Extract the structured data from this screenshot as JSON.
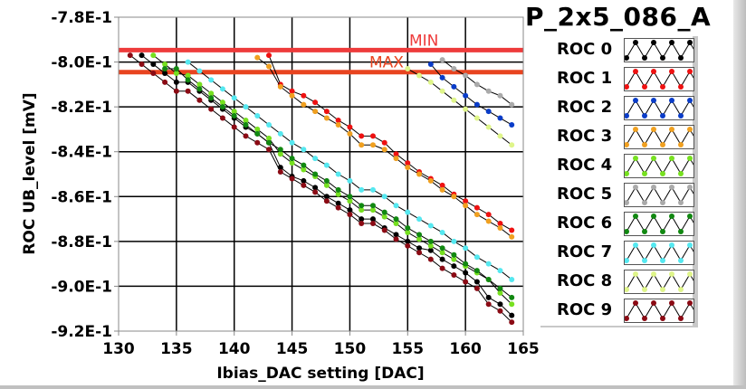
{
  "graph_title": "P_2x5_086_A",
  "chart_data": {
    "type": "line",
    "title": "P_2x5_086_A",
    "xlabel": "Ibias_DAC setting [DAC]",
    "ylabel": "ROC UB_level [mV]",
    "xlim": [
      130,
      165
    ],
    "ylim": [
      -0.92,
      -0.78
    ],
    "x_ticks": [
      130,
      135,
      140,
      145,
      150,
      155,
      160,
      165
    ],
    "x_tick_labels": [
      "130",
      "135",
      "140",
      "145",
      "150",
      "155",
      "160",
      "165"
    ],
    "y_ticks": [
      -0.78,
      -0.8,
      -0.82,
      -0.84,
      -0.86,
      -0.88,
      -0.9,
      -0.92
    ],
    "y_tick_labels": [
      "-7.8E-1",
      "-8.0E-1",
      "-8.2E-1",
      "-8.4E-1",
      "-8.6E-1",
      "-8.8E-1",
      "-9.0E-1",
      "-9.2E-1"
    ],
    "grid": true,
    "limits": [
      {
        "name": "MIN",
        "value": -0.7947,
        "color": "#ee3b3b"
      },
      {
        "name": "MAX",
        "value": -0.8045,
        "color": "#e84420"
      }
    ],
    "legend_position": "right",
    "series": [
      {
        "name": "ROC 0",
        "color": "#000000",
        "x": [
          132,
          133,
          134,
          135,
          136,
          137,
          138,
          139,
          140,
          141,
          142,
          143,
          144,
          145,
          146,
          147,
          148,
          149,
          150,
          151,
          152,
          153,
          154,
          155,
          156,
          157,
          158,
          159,
          160,
          161,
          162,
          163,
          164
        ],
        "y": [
          -0.797,
          -0.801,
          -0.805,
          -0.809,
          -0.809,
          -0.813,
          -0.817,
          -0.821,
          -0.825,
          -0.829,
          -0.832,
          -0.836,
          -0.847,
          -0.851,
          -0.853,
          -0.856,
          -0.86,
          -0.863,
          -0.866,
          -0.87,
          -0.87,
          -0.874,
          -0.877,
          -0.88,
          -0.883,
          -0.884,
          -0.888,
          -0.891,
          -0.894,
          -0.898,
          -0.905,
          -0.908,
          -0.913
        ]
      },
      {
        "name": "ROC 1",
        "color": "#ee1111",
        "x": [
          143,
          144,
          145,
          146,
          147,
          148,
          149,
          150,
          151,
          152,
          153,
          154,
          155,
          156,
          157,
          158,
          159,
          160,
          161,
          162,
          163,
          164
        ],
        "y": [
          -0.797,
          -0.81,
          -0.813,
          -0.815,
          -0.818,
          -0.822,
          -0.826,
          -0.829,
          -0.833,
          -0.833,
          -0.836,
          -0.841,
          -0.845,
          -0.849,
          -0.852,
          -0.855,
          -0.859,
          -0.862,
          -0.865,
          -0.868,
          -0.872,
          -0.875
        ]
      },
      {
        "name": "ROC 2",
        "color": "#0a3cc8",
        "x": [
          157,
          158,
          159,
          160,
          161,
          162,
          163,
          164
        ],
        "y": [
          -0.801,
          -0.807,
          -0.811,
          -0.815,
          -0.819,
          -0.822,
          -0.825,
          -0.828
        ]
      },
      {
        "name": "ROC 3",
        "color": "#f0a020",
        "x": [
          142,
          143,
          144,
          145,
          146,
          147,
          148,
          149,
          150,
          151,
          152,
          153,
          154,
          155,
          156,
          157,
          158,
          159,
          160,
          161,
          162,
          163,
          164
        ],
        "y": [
          -0.798,
          -0.802,
          -0.811,
          -0.815,
          -0.819,
          -0.822,
          -0.825,
          -0.828,
          -0.832,
          -0.837,
          -0.837,
          -0.839,
          -0.843,
          -0.847,
          -0.85,
          -0.853,
          -0.857,
          -0.86,
          -0.864,
          -0.868,
          -0.871,
          -0.874,
          -0.878
        ]
      },
      {
        "name": "ROC 4",
        "color": "#77e020",
        "x": [
          133,
          134,
          135,
          136,
          137,
          138,
          139,
          140,
          141,
          142,
          143,
          144,
          145,
          146,
          147,
          148,
          149,
          150,
          151,
          152,
          153,
          154,
          155,
          156,
          157,
          158,
          159,
          160,
          161,
          162,
          163,
          164
        ],
        "y": [
          -0.797,
          -0.801,
          -0.805,
          -0.806,
          -0.81,
          -0.814,
          -0.818,
          -0.822,
          -0.826,
          -0.83,
          -0.834,
          -0.841,
          -0.845,
          -0.848,
          -0.851,
          -0.855,
          -0.859,
          -0.862,
          -0.866,
          -0.866,
          -0.869,
          -0.872,
          -0.876,
          -0.879,
          -0.882,
          -0.885,
          -0.888,
          -0.891,
          -0.894,
          -0.897,
          -0.903,
          -0.908
        ]
      },
      {
        "name": "ROC 5",
        "color": "#aaaaaa",
        "x": [
          158,
          159,
          160,
          161,
          162,
          163,
          164
        ],
        "y": [
          -0.799,
          -0.803,
          -0.806,
          -0.81,
          -0.813,
          -0.815,
          -0.819
        ]
      },
      {
        "name": "ROC 6",
        "color": "#118811",
        "x": [
          134,
          135,
          136,
          137,
          138,
          139,
          140,
          141,
          142,
          143,
          144,
          145,
          146,
          147,
          148,
          149,
          150,
          151,
          152,
          153,
          154,
          155,
          156,
          157,
          158,
          159,
          160,
          161,
          162,
          163,
          164
        ],
        "y": [
          -0.803,
          -0.803,
          -0.808,
          -0.812,
          -0.816,
          -0.82,
          -0.824,
          -0.828,
          -0.832,
          -0.836,
          -0.839,
          -0.843,
          -0.846,
          -0.85,
          -0.853,
          -0.857,
          -0.86,
          -0.864,
          -0.864,
          -0.867,
          -0.87,
          -0.874,
          -0.877,
          -0.88,
          -0.883,
          -0.886,
          -0.89,
          -0.893,
          -0.897,
          -0.901,
          -0.905
        ]
      },
      {
        "name": "ROC 7",
        "color": "#55e8f0",
        "x": [
          136,
          137,
          138,
          139,
          140,
          141,
          142,
          143,
          144,
          145,
          146,
          147,
          148,
          149,
          150,
          151,
          152,
          153,
          154,
          155,
          156,
          157,
          158,
          159,
          160,
          161,
          162,
          163,
          164
        ],
        "y": [
          -0.8,
          -0.804,
          -0.808,
          -0.812,
          -0.816,
          -0.82,
          -0.824,
          -0.828,
          -0.832,
          -0.836,
          -0.839,
          -0.843,
          -0.846,
          -0.85,
          -0.853,
          -0.857,
          -0.857,
          -0.86,
          -0.864,
          -0.867,
          -0.87,
          -0.873,
          -0.876,
          -0.88,
          -0.883,
          -0.887,
          -0.89,
          -0.893,
          -0.897
        ]
      },
      {
        "name": "ROC 8",
        "color": "#dff58a",
        "x": [
          155,
          156,
          157,
          158,
          159,
          160,
          161,
          162,
          163,
          164
        ],
        "y": [
          -0.803,
          -0.806,
          -0.809,
          -0.813,
          -0.817,
          -0.821,
          -0.825,
          -0.829,
          -0.833,
          -0.837
        ]
      },
      {
        "name": "ROC 9",
        "color": "#8b0a14",
        "x": [
          131,
          132,
          133,
          134,
          135,
          136,
          137,
          138,
          139,
          140,
          141,
          142,
          143,
          144,
          145,
          146,
          147,
          148,
          149,
          150,
          151,
          152,
          153,
          154,
          155,
          156,
          157,
          158,
          159,
          160,
          161,
          162,
          163,
          164
        ],
        "y": [
          -0.797,
          -0.801,
          -0.805,
          -0.809,
          -0.813,
          -0.813,
          -0.817,
          -0.821,
          -0.825,
          -0.829,
          -0.833,
          -0.836,
          -0.839,
          -0.849,
          -0.852,
          -0.855,
          -0.858,
          -0.862,
          -0.865,
          -0.868,
          -0.872,
          -0.872,
          -0.875,
          -0.879,
          -0.882,
          -0.885,
          -0.888,
          -0.892,
          -0.895,
          -0.898,
          -0.901,
          -0.908,
          -0.911,
          -0.916
        ]
      }
    ]
  },
  "legend": {
    "items": [
      {
        "label": "ROC 0",
        "color": "#000000"
      },
      {
        "label": "ROC 1",
        "color": "#ee1111"
      },
      {
        "label": "ROC 2",
        "color": "#0a3cc8"
      },
      {
        "label": "ROC 3",
        "color": "#f0a020"
      },
      {
        "label": "ROC 4",
        "color": "#77e020"
      },
      {
        "label": "ROC 5",
        "color": "#aaaaaa"
      },
      {
        "label": "ROC 6",
        "color": "#118811"
      },
      {
        "label": "ROC 7",
        "color": "#55e8f0"
      },
      {
        "label": "ROC 8",
        "color": "#dff58a"
      },
      {
        "label": "ROC 9",
        "color": "#8b0a14"
      }
    ]
  }
}
